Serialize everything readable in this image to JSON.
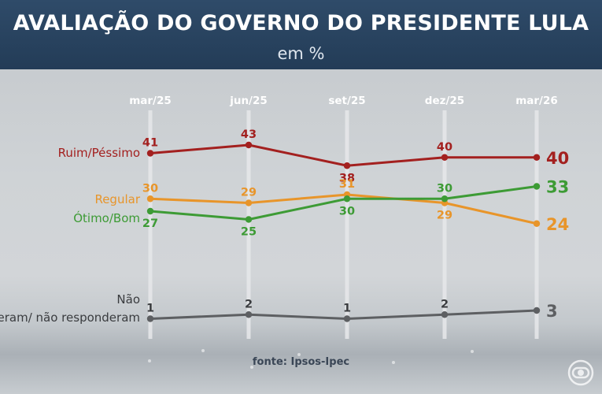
{
  "header": {
    "title": "AVALIAÇÃO DO GOVERNO DO PRESIDENTE LULA",
    "subtitle": "em %"
  },
  "source": "fonte: Ipsos-Ipec",
  "chart_data": {
    "type": "line",
    "title": "AVALIAÇÃO DO GOVERNO DO PRESIDENTE LULA",
    "subtitle": "em %",
    "x": [
      "mar/25",
      "jun/25",
      "set/25",
      "dez/25",
      "mar/26"
    ],
    "series": [
      {
        "name": "Ruim/Péssimo",
        "color": "#a3201f",
        "values": [
          41,
          43,
          38,
          40,
          40
        ],
        "label_pos": [
          "above",
          "above",
          "below",
          "above",
          "end"
        ]
      },
      {
        "name": "Regular",
        "color": "#e8952a",
        "values": [
          30,
          29,
          31,
          29,
          24
        ],
        "label_pos": [
          "above",
          "above",
          "above",
          "below",
          "end"
        ]
      },
      {
        "name": "Ótimo/Bom",
        "color": "#3d9b35",
        "values": [
          27,
          25,
          30,
          30,
          33
        ],
        "label_pos": [
          "below",
          "below",
          "below",
          "above",
          "end"
        ]
      },
      {
        "name": "Não souberam/ não responderam",
        "color": "#5d5f62",
        "values": [
          1,
          2,
          1,
          2,
          3
        ],
        "label_pos": [
          "above",
          "above",
          "above",
          "above",
          "end"
        ]
      }
    ],
    "grid": "vertical",
    "legend": "left"
  }
}
